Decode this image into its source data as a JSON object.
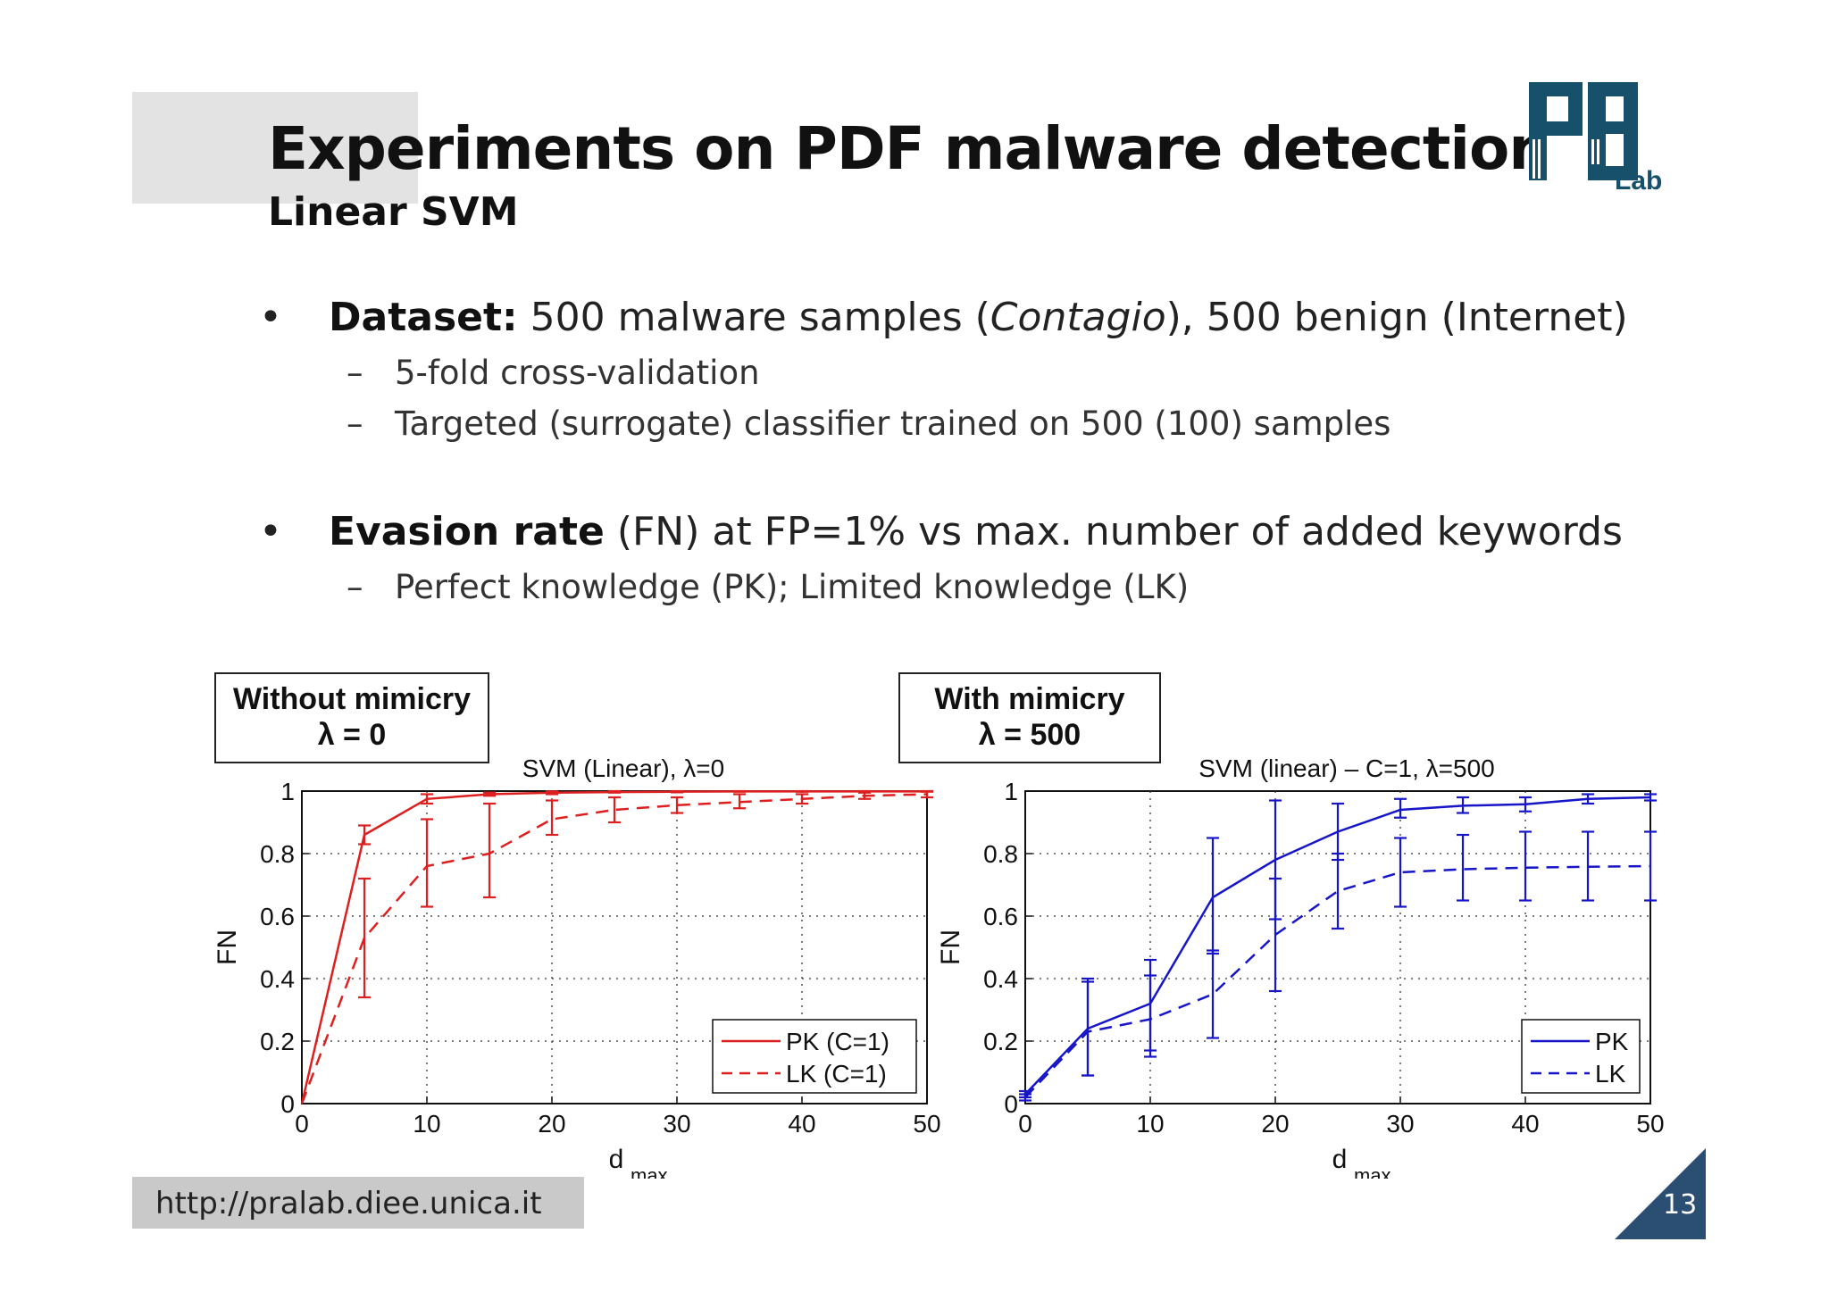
{
  "slide": {
    "title": "Experiments on PDF malware detection",
    "subtitle": "Linear SVM",
    "logo_text": "Lab",
    "footer_url": "http://pralab.diee.unica.it",
    "page_number": "13"
  },
  "bullets": [
    {
      "bold": "Dataset:",
      "pre": " 500 malware samples (",
      "italic": "Contagio",
      "post": "), 500 benign (Internet)",
      "subs": [
        "5-fold cross-validation",
        "Targeted (surrogate) classifier trained on 500 (100) samples"
      ]
    },
    {
      "bold": "Evasion rate",
      "pre": " (FN) at FP=1% vs max. number of added keywords",
      "italic": "",
      "post": "",
      "subs": [
        "Perfect knowledge (PK); Limited knowledge (LK)"
      ]
    }
  ],
  "panels": [
    {
      "line1": "Without mimicry",
      "line2": "λ = 0"
    },
    {
      "line1": "With mimicry",
      "line2": "λ = 500"
    }
  ],
  "colors": {
    "left": "#dd1f1f",
    "right": "#1616c8",
    "logo": "#17506a",
    "page_tri": "#2b4f73"
  },
  "chart_data": [
    {
      "type": "line",
      "title": "SVM (Linear), λ=0",
      "xlabel": "d",
      "xlabel_sub": "max",
      "ylabel": "FN",
      "xlim": [
        0,
        50
      ],
      "ylim": [
        0,
        1
      ],
      "grid": true,
      "legend": "bottom-right",
      "xticks": [
        "0",
        "10",
        "20",
        "30",
        "40",
        "50"
      ],
      "yticks": [
        "0",
        "0.2",
        "0.4",
        "0.6",
        "0.8",
        "1"
      ],
      "series": [
        {
          "name": "PK (C=1)",
          "style": "solid",
          "x": [
            0,
            5,
            10,
            15,
            20,
            25,
            30,
            35,
            40,
            45,
            50
          ],
          "y": [
            0,
            0.86,
            0.975,
            0.99,
            0.995,
            0.997,
            0.998,
            0.999,
            0.999,
            0.999,
            0.999
          ],
          "err_low": [
            0,
            0.83,
            0.96,
            0.985,
            0.99,
            0.995,
            0.996,
            0.998,
            0.998,
            0.998,
            0.998
          ],
          "err_high": [
            0,
            0.89,
            0.99,
            0.995,
            0.999,
            1.0,
            1.0,
            1.0,
            1.0,
            1.0,
            1.0
          ]
        },
        {
          "name": "LK (C=1)",
          "style": "dashed",
          "x": [
            0,
            5,
            10,
            15,
            20,
            25,
            30,
            35,
            40,
            45,
            50
          ],
          "y": [
            0,
            0.53,
            0.76,
            0.8,
            0.91,
            0.94,
            0.955,
            0.965,
            0.975,
            0.985,
            0.99
          ],
          "err_low": [
            0,
            0.34,
            0.63,
            0.66,
            0.86,
            0.9,
            0.93,
            0.945,
            0.96,
            0.975,
            0.98
          ],
          "err_high": [
            0,
            0.72,
            0.91,
            0.96,
            0.97,
            0.98,
            0.98,
            0.99,
            0.99,
            0.995,
            0.999
          ]
        }
      ]
    },
    {
      "type": "line",
      "title": "SVM (linear) – C=1, λ=500",
      "xlabel": "d",
      "xlabel_sub": "max",
      "ylabel": "FN",
      "xlim": [
        0,
        50
      ],
      "ylim": [
        0,
        1
      ],
      "grid": true,
      "legend": "bottom-right",
      "xticks": [
        "0",
        "10",
        "20",
        "30",
        "40",
        "50"
      ],
      "yticks": [
        "0",
        "0.2",
        "0.4",
        "0.6",
        "0.8",
        "1"
      ],
      "series": [
        {
          "name": "PK",
          "style": "solid",
          "x": [
            0,
            5,
            10,
            15,
            20,
            25,
            30,
            35,
            40,
            45,
            50
          ],
          "y": [
            0.03,
            0.24,
            0.32,
            0.66,
            0.78,
            0.87,
            0.94,
            0.953,
            0.958,
            0.975,
            0.98
          ],
          "err_low": [
            0.02,
            0.09,
            0.17,
            0.48,
            0.59,
            0.78,
            0.915,
            0.93,
            0.935,
            0.96,
            0.97
          ],
          "err_high": [
            0.04,
            0.39,
            0.46,
            0.85,
            0.97,
            0.96,
            0.975,
            0.98,
            0.98,
            0.99,
            0.99
          ]
        },
        {
          "name": "LK",
          "style": "dashed",
          "x": [
            0,
            5,
            10,
            15,
            20,
            25,
            30,
            35,
            40,
            45,
            50
          ],
          "y": [
            0.02,
            0.23,
            0.27,
            0.35,
            0.54,
            0.68,
            0.74,
            0.75,
            0.755,
            0.758,
            0.76
          ],
          "err_low": [
            0.01,
            0.09,
            0.15,
            0.21,
            0.36,
            0.56,
            0.63,
            0.65,
            0.65,
            0.65,
            0.65
          ],
          "err_high": [
            0.03,
            0.4,
            0.41,
            0.49,
            0.72,
            0.8,
            0.85,
            0.86,
            0.87,
            0.87,
            0.87
          ]
        }
      ]
    }
  ]
}
